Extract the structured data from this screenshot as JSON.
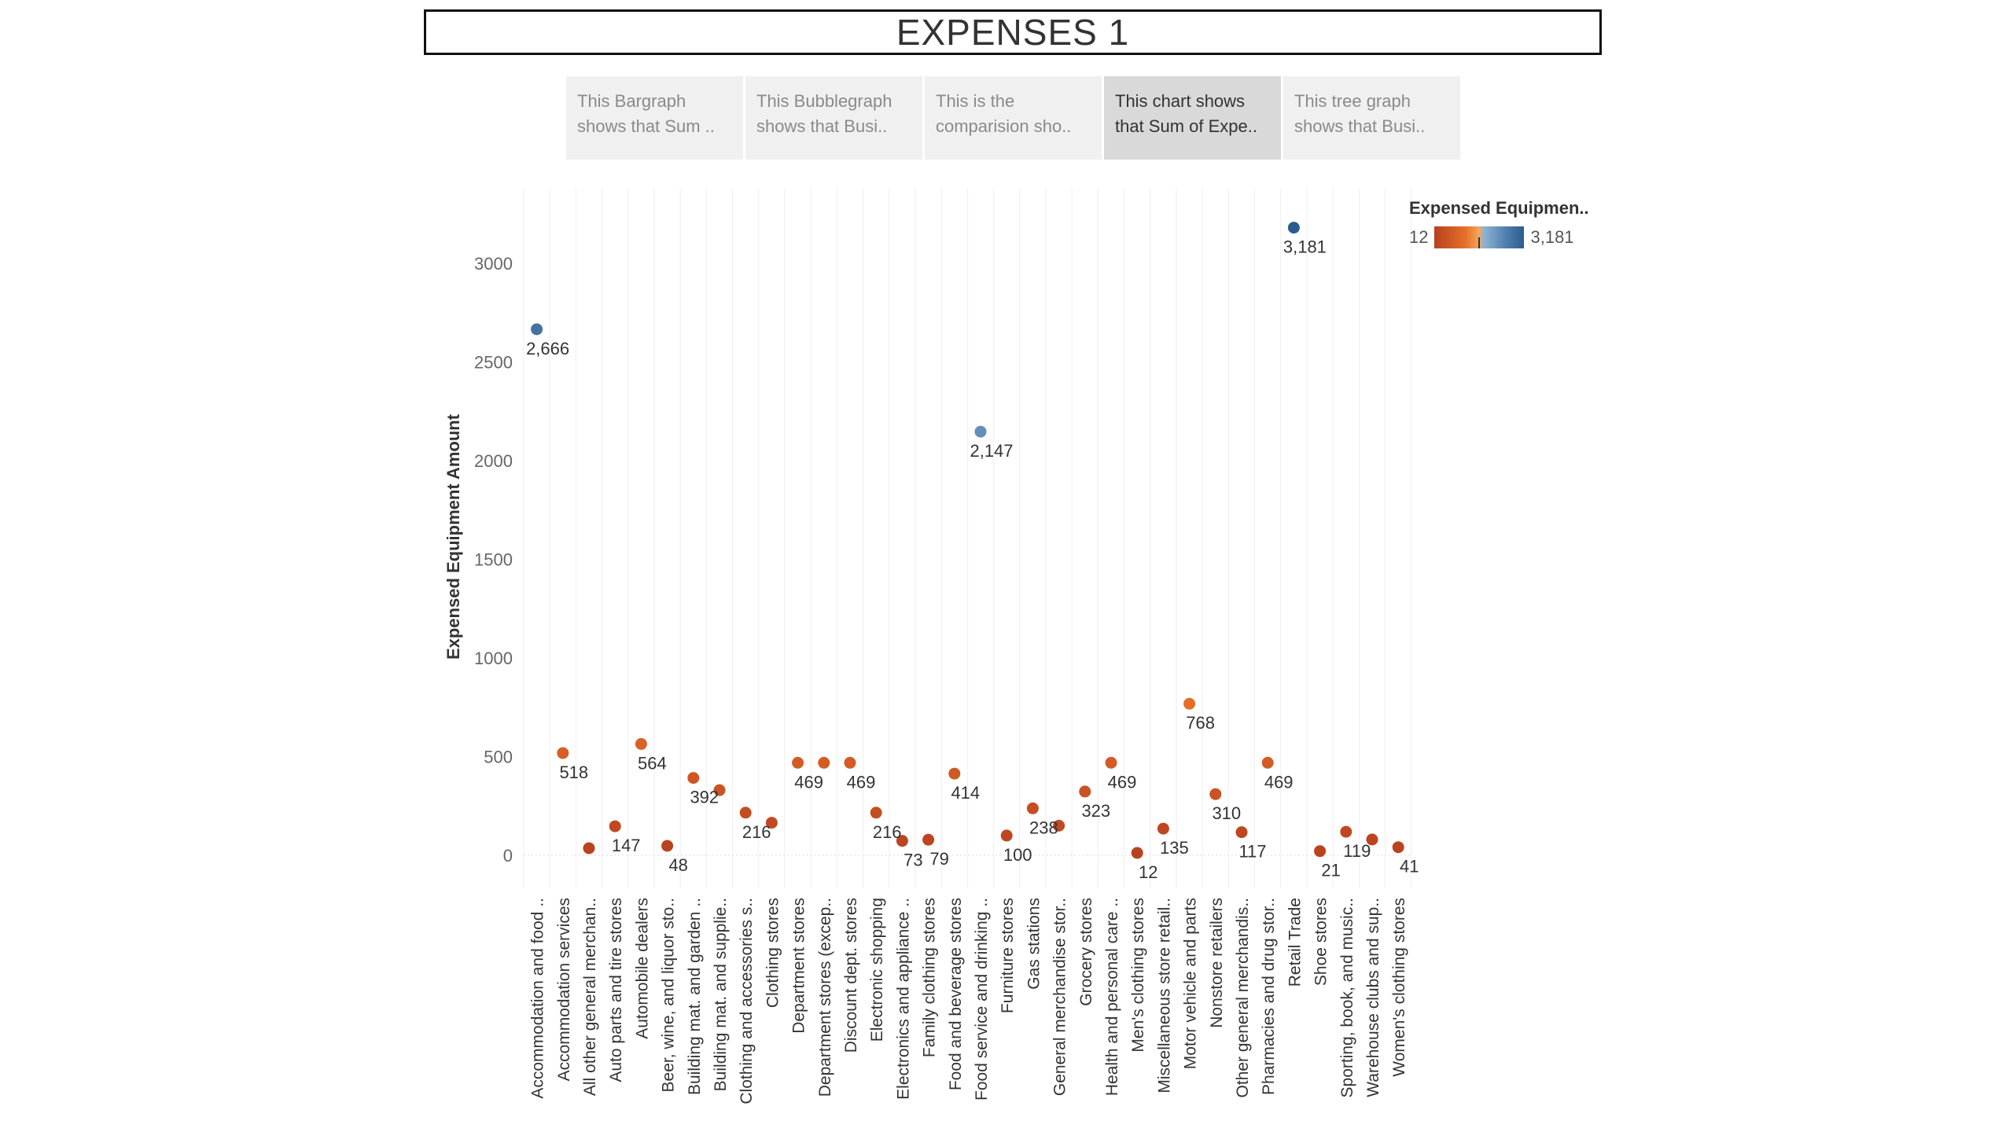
{
  "title": "EXPENSES 1",
  "tabs": [
    {
      "line1": "This Bargraph",
      "line2": "shows that Sum ..",
      "active": false
    },
    {
      "line1": "This Bubblegraph",
      "line2": "shows that Busi..",
      "active": false
    },
    {
      "line1": "This is the",
      "line2": "comparision sho..",
      "active": false
    },
    {
      "line1": "This chart shows",
      "line2": "that Sum of Expe..",
      "active": true
    },
    {
      "line1": "This tree graph",
      "line2": "shows that Busi..",
      "active": false
    }
  ],
  "legend": {
    "title": "Expensed Equipmen..",
    "min_label": "12",
    "max_label": "3,181"
  },
  "colors": {
    "low": "#b8411f",
    "mid_low": "#e6702a",
    "mid_high": "#8fb3d4",
    "high": "#2b5c8f"
  },
  "chart_data": {
    "type": "scatter",
    "ylabel": "Expensed Equipment Amount",
    "xlabel": "",
    "ylim": [
      -150,
      3350
    ],
    "yticks": [
      0,
      500,
      1000,
      1500,
      2000,
      2500,
      3000
    ],
    "color_range": [
      12,
      3181
    ],
    "grid": "vertical",
    "categories": [
      "Accommodation and food ..",
      "Accommodation services",
      "All other general merchan..",
      "Auto parts and tire stores",
      "Automobile dealers",
      "Beer, wine, and liquor sto..",
      "Building mat. and garden ..",
      "Building mat. and supplie..",
      "Clothing and accessories s..",
      "Clothing stores",
      "Department stores",
      "Department stores (excep..",
      "Discount dept. stores",
      "Electronic shopping",
      "Electronics and appliance ..",
      "Family clothing stores",
      "Food and beverage stores",
      "Food service and drinking ..",
      "Furniture stores",
      "Gas stations",
      "General merchandise stor..",
      "Grocery stores",
      "Health and personal care ..",
      "Men's clothing stores",
      "Miscellaneous store retail..",
      "Motor vehicle and parts",
      "Nonstore retailers",
      "Other general merchandis..",
      "Pharmacies and drug stor..",
      "Retail Trade",
      "Shoe stores",
      "Sporting, book, and music..",
      "Warehouse clubs and sup..",
      "Women's clothing stores"
    ],
    "values": [
      2666,
      518,
      36,
      147,
      564,
      48,
      392,
      330,
      216,
      165,
      469,
      469,
      469,
      216,
      73,
      79,
      414,
      2147,
      100,
      238,
      150,
      323,
      469,
      12,
      135,
      768,
      310,
      117,
      469,
      3181,
      21,
      119,
      80,
      41
    ],
    "labels": [
      "2,666",
      "518",
      "",
      "147",
      "564",
      "48",
      "392",
      "",
      "216",
      "",
      "469",
      "",
      "469",
      "216",
      "73",
      "79",
      "414",
      "2,147",
      "100",
      "238",
      "",
      "323",
      "469",
      "12",
      "135",
      "768",
      "310",
      "117",
      "469",
      "3,181",
      "21",
      "119",
      "",
      "41"
    ]
  }
}
